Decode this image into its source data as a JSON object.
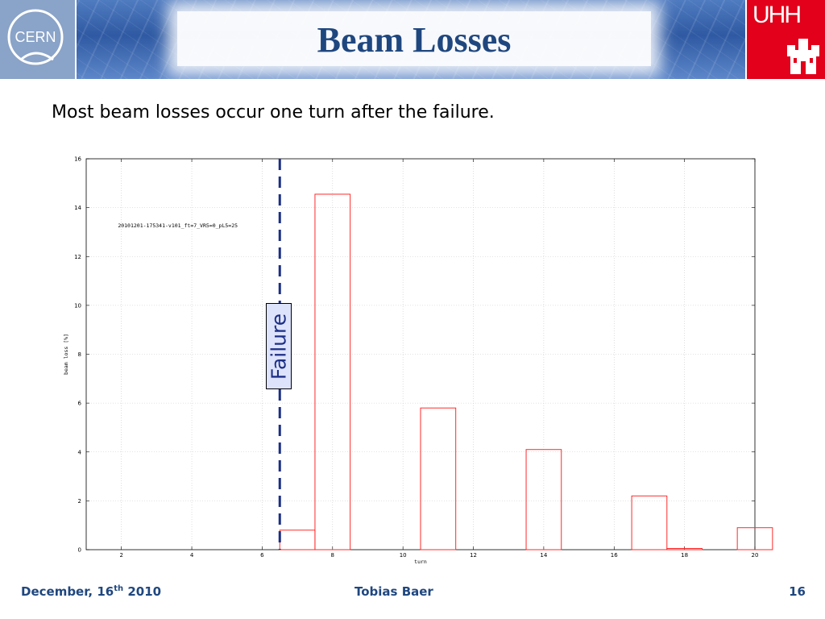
{
  "slide": {
    "title": "Beam Losses",
    "subtitle": "Most beam losses occur one turn after the failure.",
    "logos": {
      "left": "CERN",
      "right": "UHH"
    },
    "footer": {
      "date_prefix": "December, 16",
      "date_sup": "th",
      "date_suffix": " 2010",
      "author": "Tobias Baer",
      "page": "16"
    }
  },
  "colors": {
    "title": "#1f477f",
    "bars": "#ff2a2a",
    "failure_line": "#1c2f86",
    "failure_box_fill": "#dde3fb",
    "header_blue": "#2f5aa3",
    "uhh_red": "#e2001a"
  },
  "chart_data": {
    "type": "bar",
    "xlabel": "turn",
    "ylabel": "beam loss [%]",
    "xlim": [
      1,
      20
    ],
    "ylim": [
      0,
      16
    ],
    "xticks": [
      2,
      4,
      6,
      8,
      10,
      12,
      14,
      16,
      18,
      20
    ],
    "yticks": [
      0,
      2,
      4,
      6,
      8,
      10,
      12,
      14,
      16
    ],
    "grid": true,
    "run_label": "20101201-175341-v101_ft=7_VR5=0_pL5=25",
    "bins": [
      {
        "turn": 7,
        "value": 0.8
      },
      {
        "turn": 8,
        "value": 14.55
      },
      {
        "turn": 11,
        "value": 5.8
      },
      {
        "turn": 14,
        "value": 4.1
      },
      {
        "turn": 17,
        "value": 2.2
      },
      {
        "turn": 18,
        "value": 0.05
      },
      {
        "turn": 20,
        "value": 0.9
      }
    ],
    "bin_width": 1,
    "failure_turn": 6.5,
    "failure_label": "Failure"
  }
}
